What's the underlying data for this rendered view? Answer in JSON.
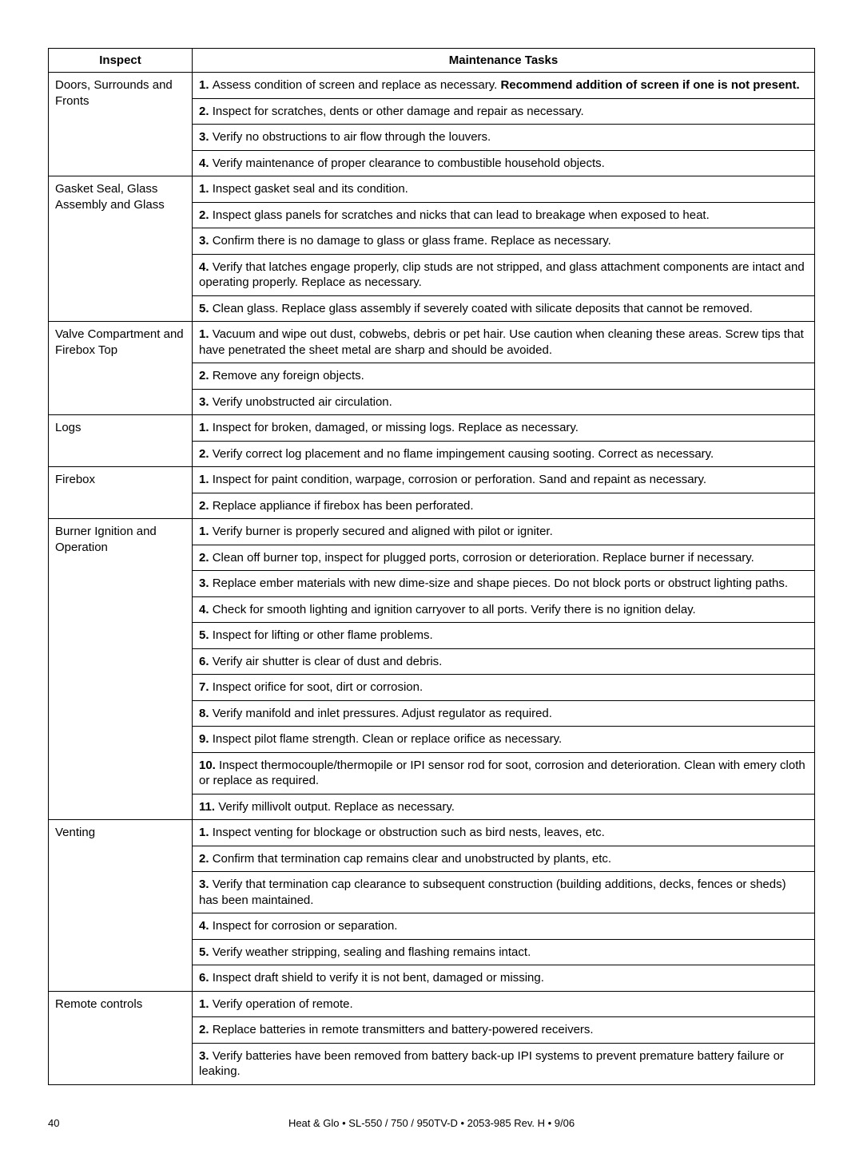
{
  "headers": {
    "inspect": "Inspect",
    "tasks": "Maintenance Tasks"
  },
  "sections": [
    {
      "inspect": "Doors, Surrounds and Fronts",
      "tasks": [
        {
          "num": "1.",
          "text": "Assess condition of screen and replace as necessary. ",
          "bold_tail": "Recommend addition of screen if one is not present."
        },
        {
          "num": "2.",
          "text": "Inspect for scratches, dents or other damage and repair as necessary."
        },
        {
          "num": "3.",
          "text": "Verify no obstructions to air ﬂow through the louvers."
        },
        {
          "num": "4.",
          "text": "Verify maintenance of proper clearance to combustible household objects."
        }
      ]
    },
    {
      "inspect": "Gasket Seal, Glass Assembly and Glass",
      "tasks": [
        {
          "num": "1.",
          "text": "Inspect gasket seal and its condition."
        },
        {
          "num": "2.",
          "text": "Inspect glass panels for scratches and nicks that can lead to breakage when exposed to heat."
        },
        {
          "num": "3.",
          "text": "Conﬁrm there is no damage to glass or glass frame. Replace as necessary."
        },
        {
          "num": "4.",
          "text": "Verify that latches engage properly, clip studs are not stripped, and glass attachment components are intact and operating properly. Replace as necessary."
        },
        {
          "num": "5.",
          "text": " Clean glass. Replace glass assembly if severely coated with silicate deposits that cannot be removed."
        }
      ]
    },
    {
      "inspect": "Valve Compartment and Firebox Top",
      "tasks": [
        {
          "num": "1.",
          "text": "Vacuum and wipe out dust, cobwebs, debris or pet hair. Use caution when cleaning these areas. Screw tips that have penetrated the sheet metal are sharp and should be avoided."
        },
        {
          "num": "2.",
          "text": " Remove any foreign objects."
        },
        {
          "num": "3.",
          "text": "Verify unobstructed air circulation."
        }
      ]
    },
    {
      "inspect": "Logs",
      "tasks": [
        {
          "num": "1.",
          "text": " Inspect for broken, damaged, or missing logs. Replace as necessary."
        },
        {
          "num": "2.",
          "text": " Verify correct log placement and no ﬂame impingement causing sooting. Correct as necessary."
        }
      ]
    },
    {
      "inspect": "Firebox",
      "tasks": [
        {
          "num": "1.",
          "text": " Inspect for paint condition, warpage, corrosion or perforation. Sand and repaint as necessary."
        },
        {
          "num": "2.",
          "text": " Replace appliance if ﬁrebox has been perforated."
        }
      ]
    },
    {
      "inspect": "Burner Ignition and Operation",
      "tasks": [
        {
          "num": "1.",
          "text": " Verify burner is properly secured and aligned with pilot or igniter."
        },
        {
          "num": "2.",
          "text": " Clean off burner top, inspect for plugged ports, corrosion or deterioration. Replace burner if necessary."
        },
        {
          "num": "3.",
          "text": " Replace ember materials with new dime-size and shape pieces. Do not block ports or obstruct lighting paths."
        },
        {
          "num": "4.",
          "text": " Check for smooth lighting and ignition carryover to all ports. Verify there is no ignition delay."
        },
        {
          "num": "5.",
          "text": " Inspect for lifting or other ﬂame problems."
        },
        {
          "num": "6.",
          "text": " Verify air shutter is clear of dust and debris."
        },
        {
          "num": "7.",
          "text": " Inspect oriﬁce for soot, dirt or corrosion."
        },
        {
          "num": "8.",
          "text": " Verify manifold and inlet pressures. Adjust regulator as required."
        },
        {
          "num": "9.",
          "text": " Inspect pilot ﬂame strength. Clean or replace oriﬁce as necessary."
        },
        {
          "num": "10.",
          "text": " Inspect thermocouple/thermopile or IPI sensor rod for soot, corrosion and deterioration. Clean with emery cloth or replace as required."
        },
        {
          "num": "11.",
          "text": " Verify millivolt output. Replace as necessary."
        }
      ]
    },
    {
      "inspect": "Venting",
      "tasks": [
        {
          "num": "1.",
          "text": " Inspect venting for blockage or obstruction such as bird nests, leaves, etc."
        },
        {
          "num": "2.",
          "text": " Conﬁrm that termination cap remains clear and unobstructed by plants, etc."
        },
        {
          "num": "3.",
          "text": " Verify that termination cap clearance to subsequent construction (building additions, decks, fences or sheds) has been maintained."
        },
        {
          "num": "4.",
          "text": " Inspect for corrosion or separation."
        },
        {
          "num": "5.",
          "text": " Verify weather stripping, sealing and ﬂashing remains intact."
        },
        {
          "num": "6.",
          "text": " Inspect draft shield to verify it is not bent, damaged or missing."
        }
      ]
    },
    {
      "inspect": "Remote controls",
      "tasks": [
        {
          "num": "1.",
          "text": " Verify operation of remote."
        },
        {
          "num": "2.",
          "text": " Replace batteries in remote transmitters and battery-powered receivers."
        },
        {
          "num": "3.",
          "text": " Verify batteries have been removed from battery back-up IPI systems to prevent premature battery failure or leaking."
        }
      ]
    }
  ],
  "footer": {
    "page_number": "40",
    "text": "Heat & Glo  •  SL-550 / 750 / 950TV-D  •  2053-985 Rev. H  •  9/06"
  }
}
